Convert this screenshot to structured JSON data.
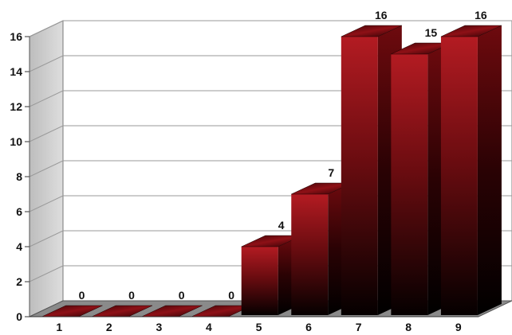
{
  "chart_data": {
    "type": "bar",
    "title": "",
    "xlabel": "",
    "ylabel": "",
    "categories": [
      "1",
      "2",
      "3",
      "4",
      "5",
      "6",
      "7",
      "8",
      "9"
    ],
    "values": [
      0,
      0,
      0,
      0,
      4,
      7,
      16,
      15,
      16
    ],
    "data_labels": [
      "0",
      "0",
      "0",
      "0",
      "4",
      "7",
      "16",
      "15",
      "16"
    ],
    "ylim": [
      0,
      16
    ],
    "yticks": [
      0,
      2,
      4,
      6,
      8,
      10,
      12,
      14,
      16
    ],
    "grid": true,
    "style": "3d",
    "colors": {
      "bar_top": "#b31b22",
      "bar_bottom": "#050000",
      "wall": "#cfcfcf",
      "floor": "#8a8a8a"
    }
  }
}
